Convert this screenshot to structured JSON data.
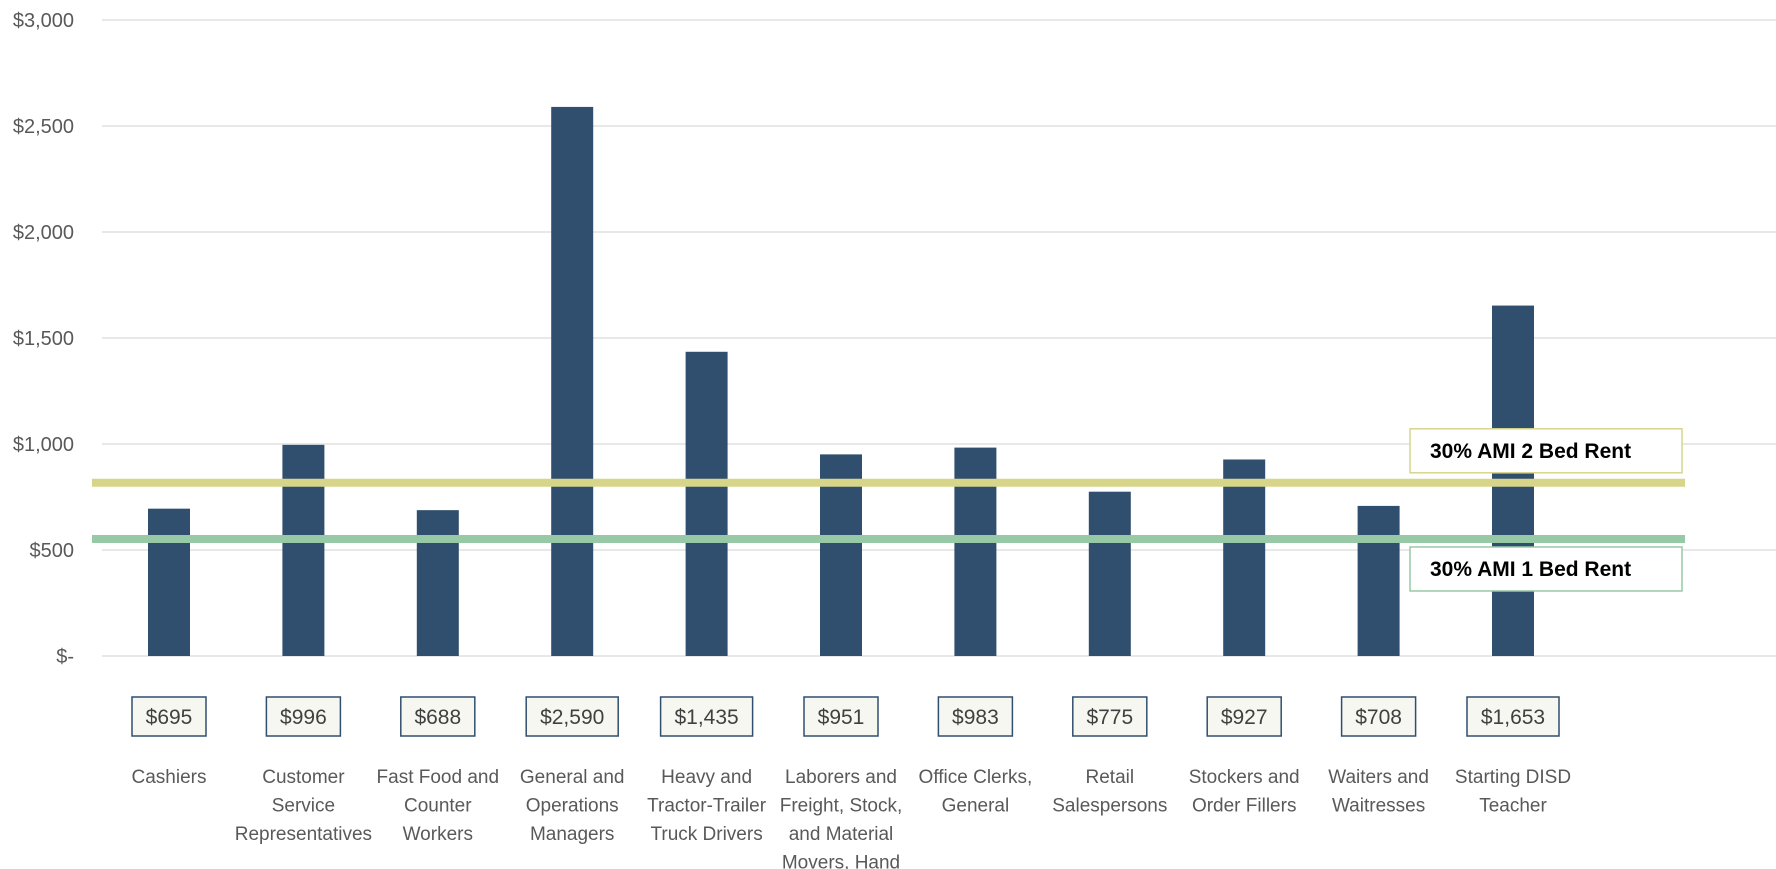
{
  "chart_data": {
    "type": "bar",
    "title": "",
    "xlabel": "",
    "ylabel": "",
    "ylim": [
      0,
      3000
    ],
    "y_ticks": [
      0,
      500,
      1000,
      1500,
      2000,
      2500,
      3000
    ],
    "y_tick_labels": [
      "$-",
      "$500",
      "$1,000",
      "$1,500",
      "$2,000",
      "$2,500",
      "$3,000"
    ],
    "grid": true,
    "categories": [
      [
        "Cashiers"
      ],
      [
        "Customer",
        "Service",
        "Representatives"
      ],
      [
        "Fast Food and",
        "Counter",
        "Workers"
      ],
      [
        "General and",
        "Operations",
        "Managers"
      ],
      [
        "Heavy and",
        "Tractor-Trailer",
        "Truck Drivers"
      ],
      [
        "Laborers and",
        "Freight, Stock,",
        "and Material",
        "Movers, Hand"
      ],
      [
        "Office Clerks,",
        "General"
      ],
      [
        "Retail",
        "Salespersons"
      ],
      [
        "Stockers and",
        "Order Fillers"
      ],
      [
        "Waiters and",
        "Waitresses"
      ],
      [
        "Starting DISD",
        "Teacher"
      ]
    ],
    "values": [
      695,
      996,
      688,
      2590,
      1435,
      951,
      983,
      775,
      927,
      708,
      1653
    ],
    "data_labels": [
      "$695",
      "$996",
      "$688",
      "$2,590",
      "$1,435",
      "$951",
      "$983",
      "$775",
      "$927",
      "$708",
      "$1,653"
    ],
    "reference_lines": [
      {
        "label": "30% AMI 2 Bed Rent",
        "value": 817,
        "color": "#d6d58a",
        "label_position": "above"
      },
      {
        "label": "30% AMI 1 Bed Rent",
        "value": 552,
        "color": "#98c9a6",
        "label_position": "below"
      }
    ],
    "colors": {
      "bar": "#304f6e",
      "grid": "#d9d9d9",
      "tick_text": "#595959",
      "label_box_fill": "#f7f7f2",
      "label_box_stroke": "#304f6e"
    }
  }
}
